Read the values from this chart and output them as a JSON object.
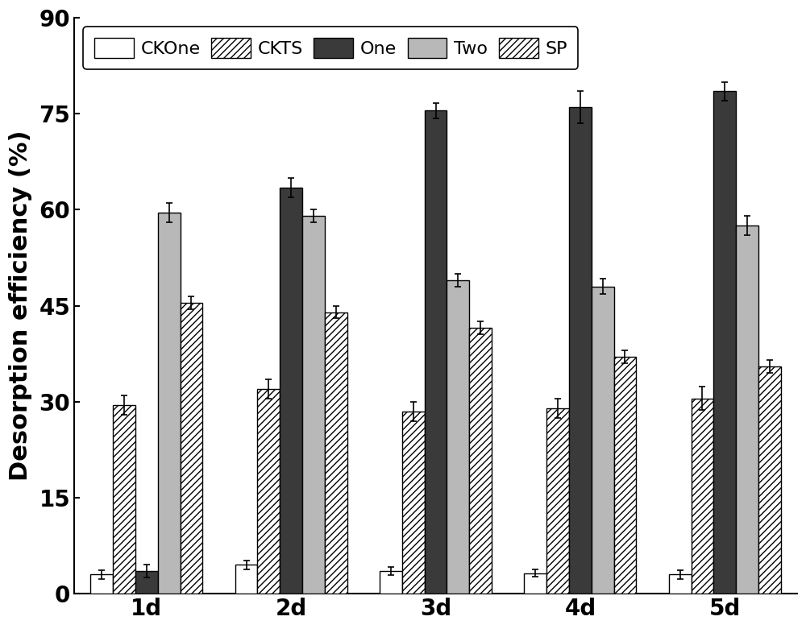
{
  "categories": [
    "1d",
    "2d",
    "3d",
    "4d",
    "5d"
  ],
  "series": {
    "CKOne": [
      3.0,
      4.5,
      3.5,
      3.2,
      3.0
    ],
    "CKTS": [
      29.5,
      32.0,
      28.5,
      29.0,
      30.5
    ],
    "One": [
      3.5,
      63.5,
      75.5,
      76.0,
      78.5
    ],
    "Two": [
      59.5,
      59.0,
      49.0,
      48.0,
      57.5
    ],
    "SP": [
      45.5,
      44.0,
      41.5,
      37.0,
      35.5
    ]
  },
  "errors": {
    "CKOne": [
      0.7,
      0.7,
      0.6,
      0.6,
      0.7
    ],
    "CKTS": [
      1.5,
      1.5,
      1.5,
      1.5,
      1.8
    ],
    "One": [
      1.0,
      1.5,
      1.2,
      2.5,
      1.5
    ],
    "Two": [
      1.5,
      1.0,
      1.0,
      1.2,
      1.5
    ],
    "SP": [
      1.0,
      1.0,
      1.0,
      1.0,
      1.0
    ]
  },
  "colors": {
    "CKOne": "#ffffff",
    "CKTS": "#ffffff",
    "One": "#3a3a3a",
    "Two": "#b8b8b8",
    "SP": "#ffffff"
  },
  "hatches": {
    "CKOne": "",
    "CKTS": "////",
    "One": "",
    "Two": "",
    "SP": "////"
  },
  "edgecolors": {
    "CKOne": "#000000",
    "CKTS": "#000000",
    "One": "#000000",
    "Two": "#000000",
    "SP": "#000000"
  },
  "ylabel": "Desorption efficiency (%)",
  "ylim": [
    0,
    90
  ],
  "yticks": [
    0,
    15,
    30,
    45,
    60,
    75,
    90
  ],
  "bar_width": 0.155,
  "legend_order": [
    "CKOne",
    "CKTS",
    "One",
    "Two",
    "SP"
  ],
  "background_color": "#ffffff",
  "axis_fontsize": 22,
  "tick_fontsize": 20,
  "legend_fontsize": 16
}
